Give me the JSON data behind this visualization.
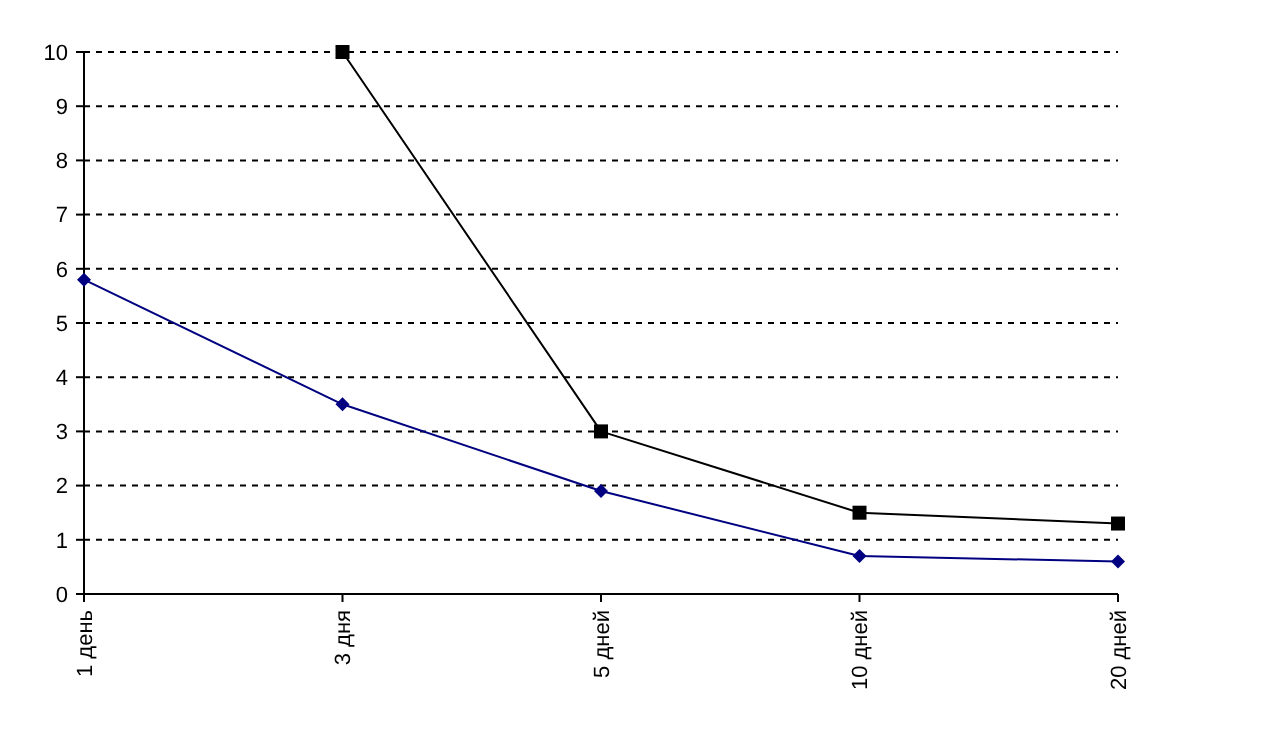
{
  "chart_data": {
    "type": "line",
    "categories": [
      "1 день",
      "3 дня",
      "5 дней",
      "10 дней",
      "20 дней"
    ],
    "series": [
      {
        "color": "#000080",
        "marker": "diamond",
        "values": [
          5.8,
          3.5,
          1.9,
          0.7,
          0.6
        ]
      },
      {
        "color": "#000000",
        "marker": "square",
        "values": [
          null,
          10,
          3.0,
          1.5,
          1.3
        ]
      }
    ],
    "ylim": [
      0,
      10
    ],
    "yticks": [
      0,
      1,
      2,
      3,
      4,
      5,
      6,
      7,
      8,
      9,
      10
    ],
    "grid": "y",
    "line_style": "solid"
  }
}
